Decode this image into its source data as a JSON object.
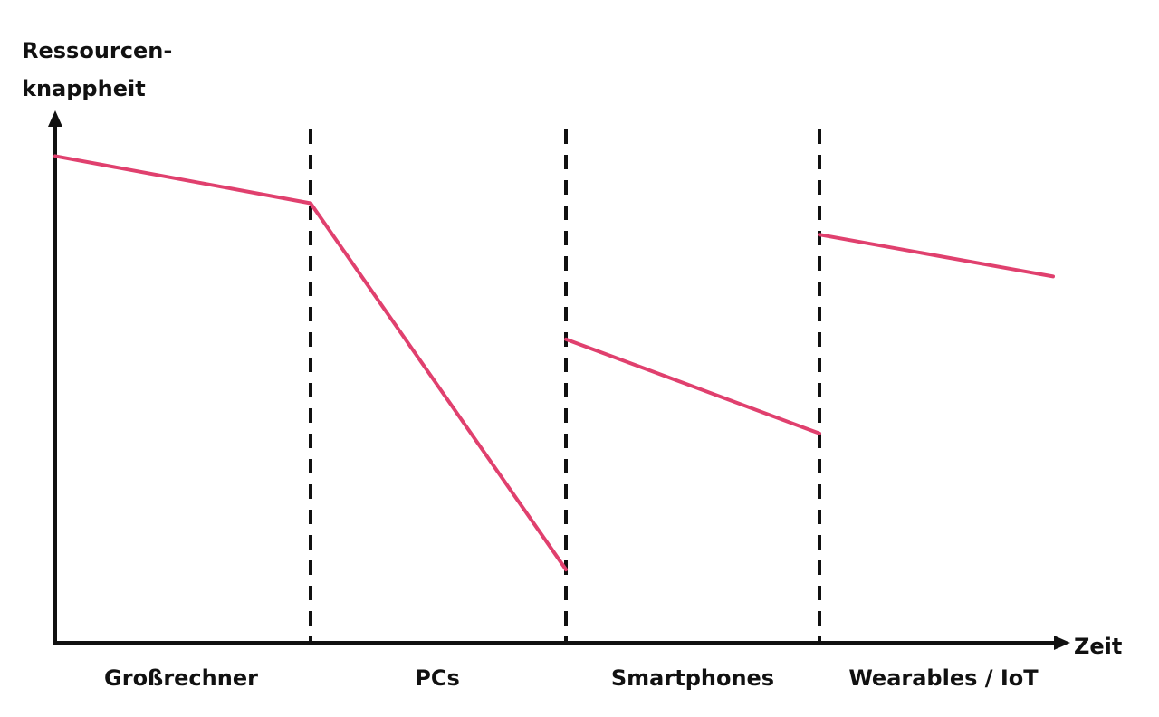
{
  "diagram": {
    "y_axis_label_lines": [
      "Ressourcen-",
      "knappheit"
    ],
    "x_axis_label": "Zeit",
    "eras": [
      {
        "label": "Großrechner"
      },
      {
        "label": "PCs"
      },
      {
        "label": "Smartphones"
      },
      {
        "label": "Wearables / IoT"
      }
    ],
    "colors": {
      "axis": "#111111",
      "divider": "#111111",
      "trend": "#e0406e"
    }
  },
  "chart_data": {
    "type": "line",
    "xlabel": "Zeit",
    "ylabel": "Ressourcen-knappheit",
    "categories": [
      "Großrechner",
      "PCs",
      "Smartphones",
      "Wearables / IoT"
    ],
    "y_range": [
      0,
      1
    ],
    "segments": [
      {
        "category": "Großrechner",
        "y_start": 0.93,
        "y_end": 0.84
      },
      {
        "category": "PCs",
        "y_start": 0.84,
        "y_end": 0.14
      },
      {
        "category": "Smartphones",
        "y_start": 0.58,
        "y_end": 0.4
      },
      {
        "category": "Wearables / IoT",
        "y_start": 0.78,
        "y_end": 0.7
      }
    ],
    "grid": false,
    "legend": "none"
  }
}
